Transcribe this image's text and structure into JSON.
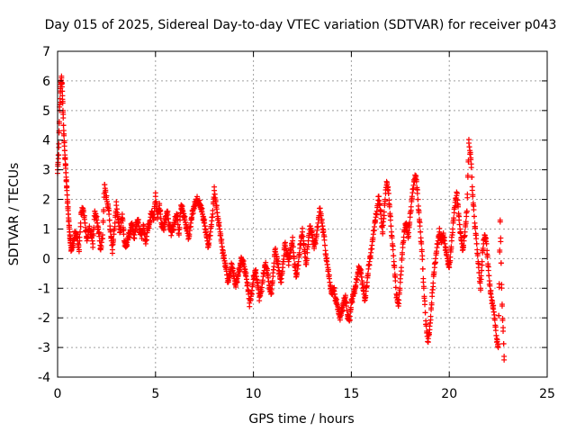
{
  "chart_data": {
    "type": "scatter",
    "title": "Day 015 of 2025, Sidereal Day-to-day VTEC variation (SDTVAR) for receiver p043",
    "xlabel": "GPS time / hours",
    "ylabel": "SDTVAR / TECUs",
    "xlim": [
      0,
      25
    ],
    "ylim": [
      -4,
      7
    ],
    "xticks": [
      "0",
      "5",
      "10",
      "15",
      "20",
      "25"
    ],
    "yticks": [
      "-4",
      "-3",
      "-2",
      "-1",
      "0",
      "1",
      "2",
      "3",
      "4",
      "5",
      "6",
      "7"
    ],
    "grid": true,
    "marker": "+",
    "color": "#ff0000",
    "series": [
      {
        "name": "SDTVAR",
        "x": [
          0.0,
          0.05,
          0.1,
          0.15,
          0.2,
          0.25,
          0.3,
          0.35,
          0.4,
          0.45,
          0.5,
          0.55,
          0.6,
          0.65,
          0.7,
          0.8,
          0.9,
          1.0,
          1.1,
          1.2,
          1.3,
          1.4,
          1.5,
          1.6,
          1.7,
          1.8,
          1.9,
          2.0,
          2.1,
          2.2,
          2.3,
          2.4,
          2.5,
          2.6,
          2.7,
          2.8,
          2.9,
          3.0,
          3.1,
          3.2,
          3.3,
          3.4,
          3.5,
          3.6,
          3.7,
          3.8,
          3.9,
          4.0,
          4.1,
          4.2,
          4.3,
          4.4,
          4.5,
          4.6,
          4.7,
          4.8,
          4.9,
          5.0,
          5.1,
          5.2,
          5.3,
          5.4,
          5.5,
          5.6,
          5.7,
          5.8,
          5.9,
          6.0,
          6.1,
          6.2,
          6.3,
          6.4,
          6.5,
          6.6,
          6.7,
          6.8,
          6.9,
          7.0,
          7.1,
          7.2,
          7.3,
          7.4,
          7.5,
          7.6,
          7.7,
          7.8,
          7.9,
          8.0,
          8.1,
          8.2,
          8.3,
          8.4,
          8.5,
          8.6,
          8.7,
          8.8,
          8.9,
          9.0,
          9.1,
          9.2,
          9.3,
          9.4,
          9.5,
          9.6,
          9.7,
          9.8,
          9.9,
          10.0,
          10.1,
          10.2,
          10.3,
          10.4,
          10.5,
          10.6,
          10.7,
          10.8,
          10.9,
          11.0,
          11.1,
          11.2,
          11.3,
          11.4,
          11.5,
          11.6,
          11.7,
          11.8,
          11.9,
          12.0,
          12.1,
          12.2,
          12.3,
          12.4,
          12.5,
          12.6,
          12.7,
          12.8,
          12.9,
          13.0,
          13.1,
          13.2,
          13.3,
          13.4,
          13.5,
          13.6,
          13.7,
          13.8,
          13.9,
          14.0,
          14.1,
          14.2,
          14.3,
          14.4,
          14.5,
          14.6,
          14.7,
          14.8,
          14.9,
          15.0,
          15.1,
          15.2,
          15.3,
          15.4,
          15.5,
          15.6,
          15.7,
          15.8,
          15.9,
          16.0,
          16.1,
          16.2,
          16.3,
          16.4,
          16.5,
          16.6,
          16.7,
          16.8,
          16.9,
          17.0,
          17.1,
          17.2,
          17.3,
          17.4,
          17.5,
          17.6,
          17.7,
          17.8,
          17.9,
          18.0,
          18.1,
          18.2,
          18.3,
          18.4,
          18.5,
          18.6,
          18.7,
          18.8,
          18.9,
          19.0,
          19.1,
          19.2,
          19.3,
          19.4,
          19.5,
          19.6,
          19.7,
          19.8,
          19.9,
          20.0,
          20.1,
          20.2,
          20.3,
          20.4,
          20.5,
          20.6,
          20.7,
          20.8,
          20.9,
          21.0,
          21.1,
          21.2,
          21.3,
          21.4,
          21.5,
          21.6,
          21.7,
          21.8,
          21.9,
          22.0,
          22.1,
          22.2,
          22.3,
          22.4,
          22.5,
          22.6,
          22.7,
          22.8
        ],
        "y": [
          3.0,
          3.5,
          5.0,
          5.8,
          6.1,
          5.5,
          4.5,
          3.8,
          3.2,
          2.6,
          2.0,
          1.5,
          1.0,
          0.6,
          0.3,
          0.5,
          0.9,
          0.7,
          0.3,
          1.5,
          1.7,
          1.2,
          0.6,
          1.0,
          0.9,
          0.5,
          1.6,
          1.3,
          0.9,
          0.3,
          0.8,
          2.5,
          2.0,
          1.7,
          0.9,
          0.3,
          1.0,
          1.8,
          1.3,
          0.9,
          1.5,
          0.6,
          0.4,
          0.7,
          0.9,
          1.2,
          0.7,
          1.1,
          1.3,
          0.9,
          0.8,
          1.1,
          0.5,
          1.0,
          1.2,
          1.6,
          1.3,
          2.1,
          1.4,
          1.8,
          1.2,
          1.0,
          1.3,
          1.6,
          1.1,
          0.9,
          1.0,
          1.3,
          1.5,
          0.8,
          1.8,
          1.6,
          1.3,
          1.0,
          0.7,
          1.2,
          1.6,
          1.8,
          2.0,
          1.9,
          1.8,
          1.5,
          1.2,
          0.8,
          0.4,
          0.9,
          1.4,
          2.3,
          1.8,
          1.3,
          0.9,
          0.4,
          0.0,
          -0.3,
          -0.8,
          -0.5,
          -0.2,
          -0.6,
          -0.9,
          -0.6,
          -0.3,
          0.0,
          -0.2,
          -0.5,
          -0.9,
          -1.5,
          -1.2,
          -0.7,
          -0.4,
          -0.8,
          -1.3,
          -1.1,
          -0.6,
          -0.2,
          -0.4,
          -0.9,
          -1.2,
          -0.6,
          0.3,
          0.0,
          -0.4,
          -0.8,
          -0.3,
          0.5,
          0.2,
          -0.1,
          0.3,
          0.6,
          -0.2,
          -0.6,
          -0.1,
          0.5,
          0.9,
          0.3,
          -0.2,
          0.6,
          1.1,
          0.8,
          0.4,
          0.7,
          1.2,
          1.7,
          1.2,
          0.8,
          0.1,
          -0.3,
          -0.8,
          -1.2,
          -1.0,
          -1.4,
          -1.6,
          -2.0,
          -1.8,
          -1.5,
          -1.3,
          -1.9,
          -2.1,
          -1.5,
          -1.2,
          -1.0,
          -0.6,
          -0.3,
          -0.5,
          -1.0,
          -1.4,
          -0.8,
          -0.2,
          0.2,
          0.7,
          1.2,
          1.6,
          2.1,
          1.5,
          0.9,
          1.8,
          2.6,
          2.2,
          1.3,
          0.5,
          -0.3,
          -1.2,
          -1.6,
          -0.8,
          0.2,
          0.9,
          1.2,
          0.7,
          1.4,
          2.1,
          2.6,
          2.8,
          2.0,
          1.1,
          0.3,
          -1.0,
          -2.1,
          -2.8,
          -2.4,
          -1.5,
          -0.6,
          0.0,
          0.5,
          0.9,
          0.6,
          0.8,
          0.4,
          0.0,
          -0.3,
          0.4,
          1.2,
          1.9,
          2.2,
          1.3,
          0.7,
          0.3,
          0.9,
          1.6,
          3.9,
          3.4,
          2.1,
          1.2,
          0.5,
          -0.3,
          -1.0,
          0.2,
          0.8,
          0.5,
          -0.4,
          -1.1,
          -1.5,
          -1.9,
          -2.6,
          -3.0,
          1.3,
          -1.6,
          -3.3
        ]
      }
    ]
  }
}
